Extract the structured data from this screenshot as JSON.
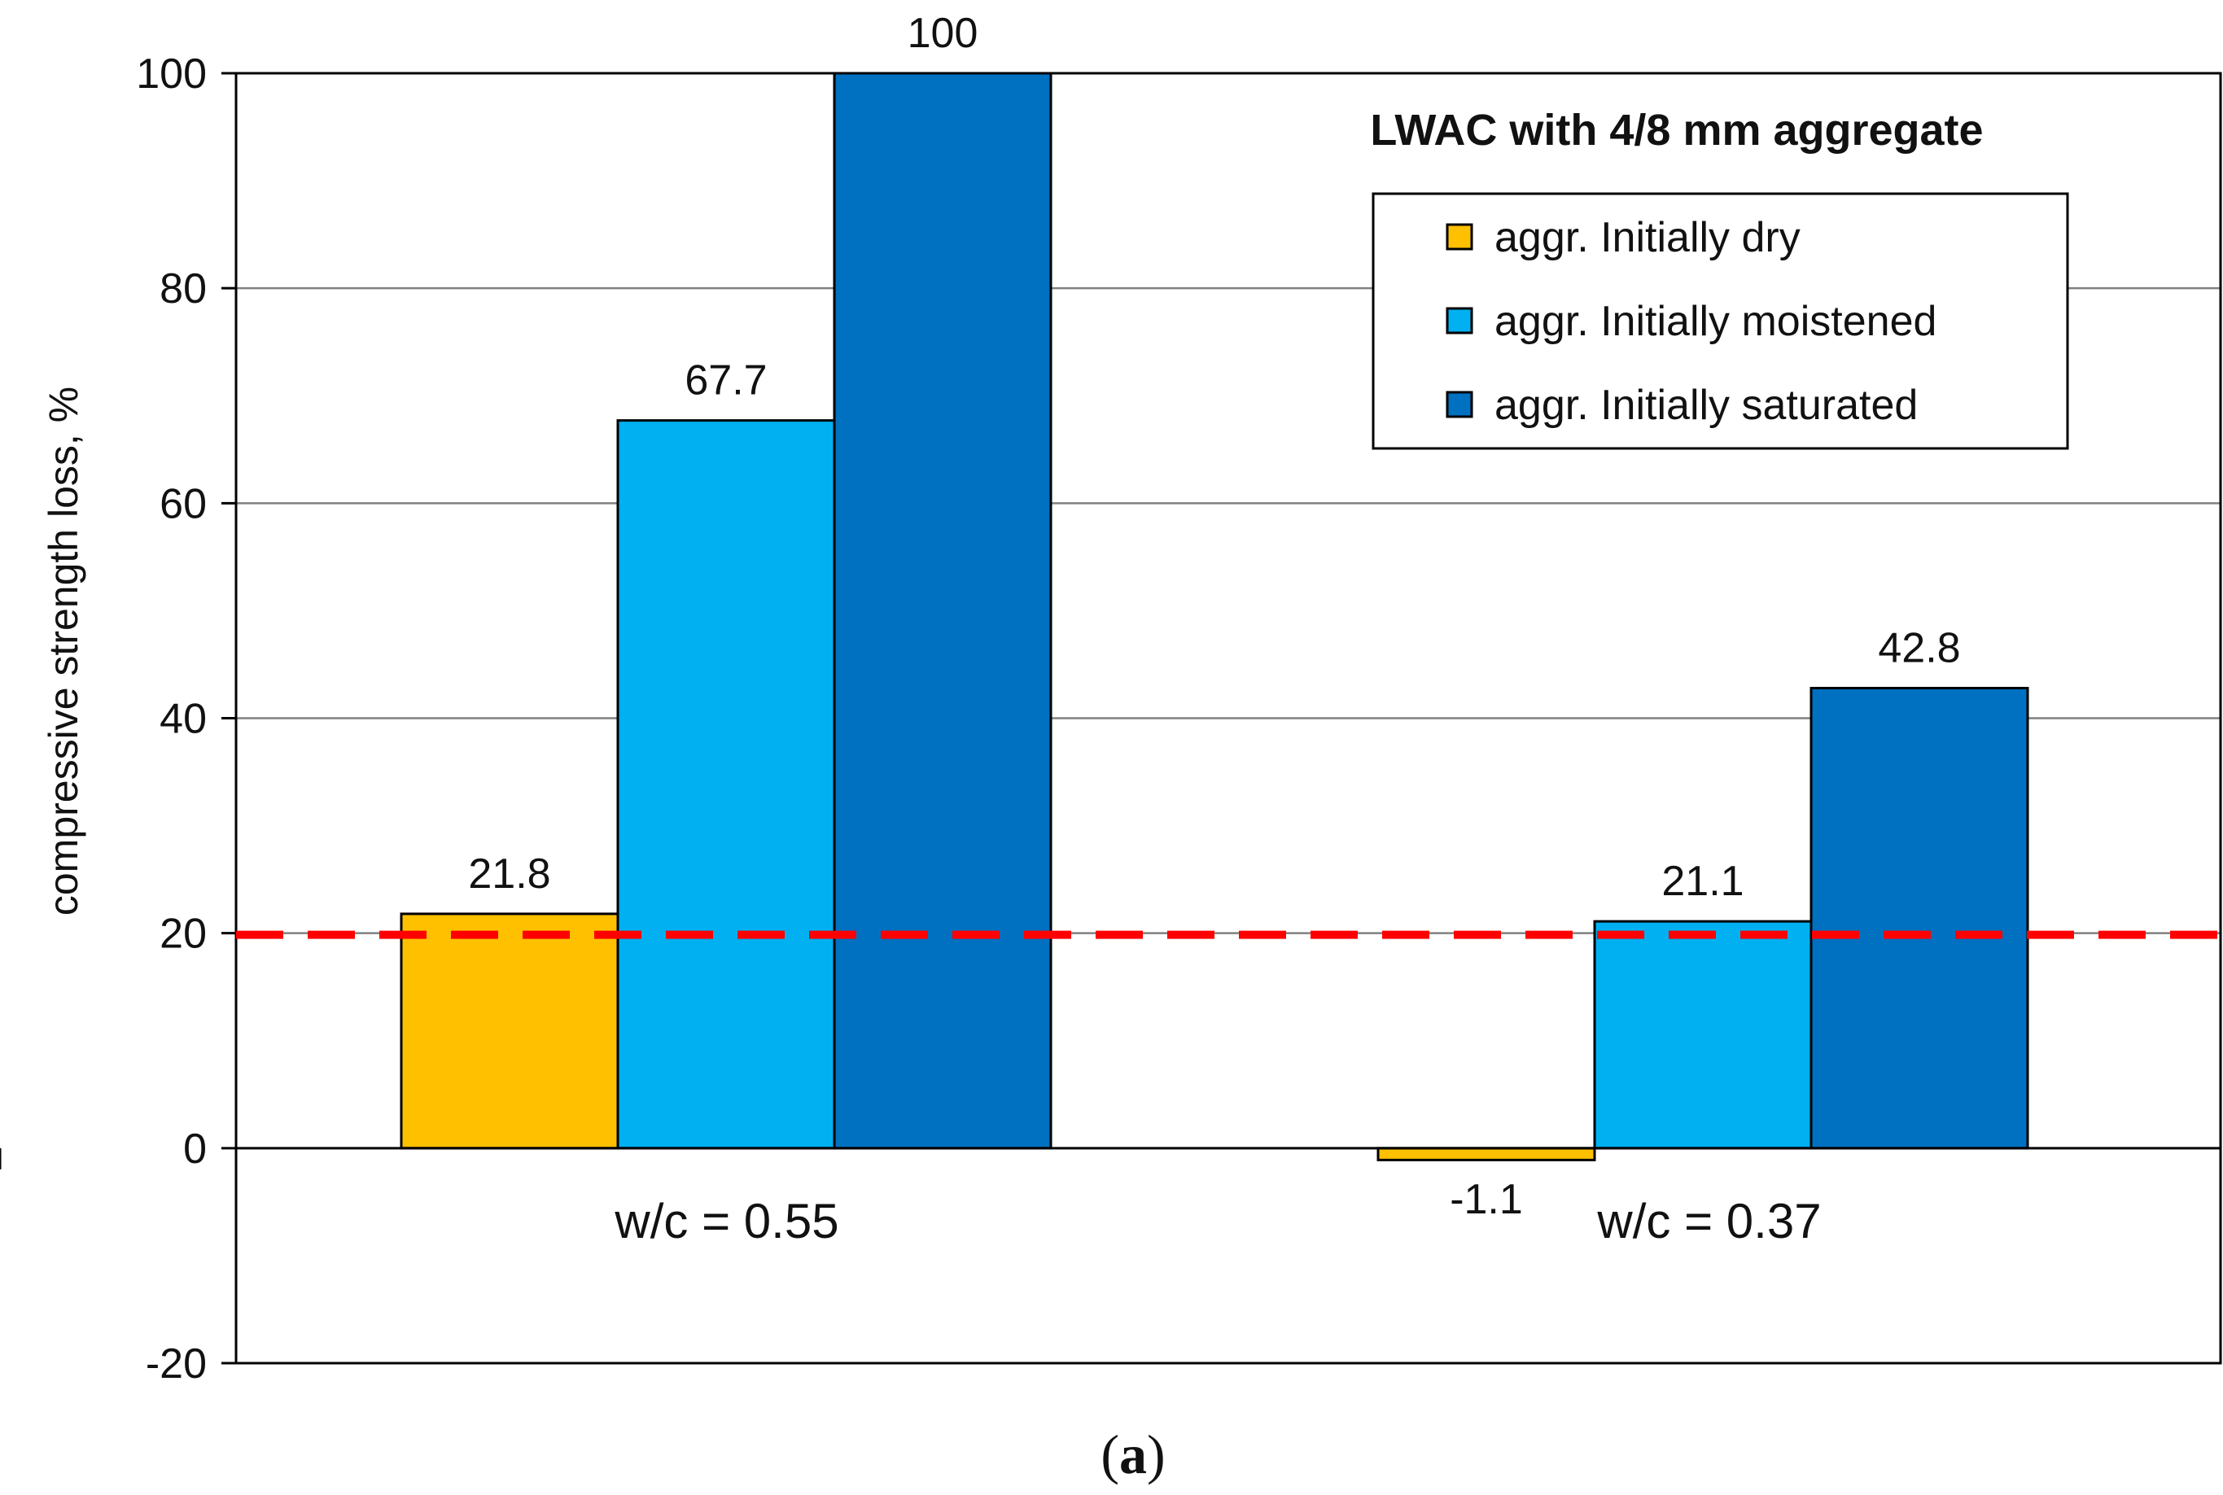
{
  "chart_data": {
    "type": "bar",
    "title": "LWAC with 4/8 mm aggregate",
    "ylabel": "compressive  strength loss, %",
    "xlabel": "",
    "ylim": [
      -20,
      100
    ],
    "yticks": [
      -20,
      0,
      20,
      40,
      60,
      80,
      100
    ],
    "categories": [
      "w/c = 0.55",
      "w/c = 0.37"
    ],
    "series": [
      {
        "name": "aggr. Initially dry",
        "values": [
          21.8,
          -1.1
        ],
        "labels": [
          "21.8",
          "-1.1"
        ],
        "color": "#FFC000"
      },
      {
        "name": "aggr. Initially moistened",
        "values": [
          67.7,
          21.1
        ],
        "labels": [
          "67.7",
          "21.1"
        ],
        "color": "#00B0F0"
      },
      {
        "name": "aggr. Initially saturated",
        "values": [
          100,
          42.8
        ],
        "labels": [
          "100",
          "42.8"
        ],
        "color": "#0070C0"
      }
    ],
    "reference_line": {
      "value": 20,
      "color": "#FF0000",
      "style": "dashed"
    },
    "grid": true,
    "legend_position": "top-right"
  },
  "caption": {
    "open": "(",
    "letter": "a",
    "close": ")"
  }
}
